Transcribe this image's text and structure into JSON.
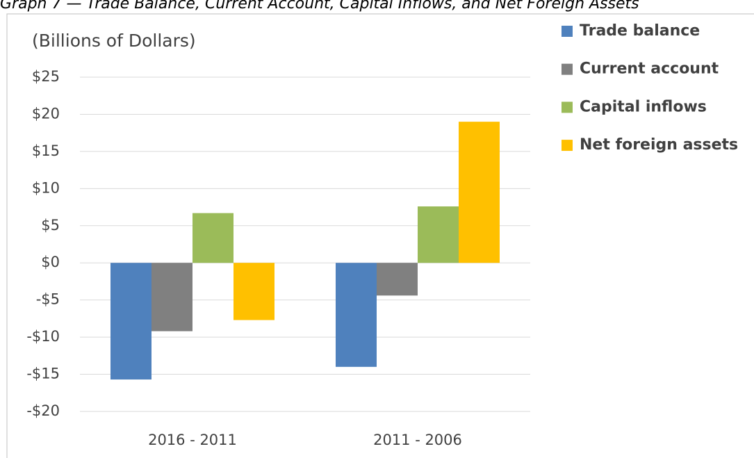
{
  "chart_data": {
    "type": "bar",
    "title": "Graph 7 — Trade Balance, Current Account, Capital Inflows, and Net Foreign Assets",
    "y_label": "(Billions of Dollars)",
    "categories": [
      "2016 - 2011",
      "2011 - 2006"
    ],
    "series": [
      {
        "name": "Trade balance",
        "color": "#4f81bd",
        "values": [
          -15.7,
          -14.0
        ]
      },
      {
        "name": "Current account",
        "color": "#808080",
        "values": [
          -9.2,
          -4.4
        ]
      },
      {
        "name": "Capital inflows",
        "color": "#9bbb59",
        "values": [
          6.7,
          7.6
        ]
      },
      {
        "name": "Net foreign assets",
        "color": "#ffc000",
        "values": [
          -7.7,
          19.0
        ]
      }
    ],
    "ylim": [
      -20,
      25
    ],
    "yticks": [
      {
        "value": -20,
        "label": "-$20"
      },
      {
        "value": -15,
        "label": "-$15"
      },
      {
        "value": -10,
        "label": "-$10"
      },
      {
        "value": -5,
        "label": "-$5"
      },
      {
        "value": 0,
        "label": "$0"
      },
      {
        "value": 5,
        "label": "$5"
      },
      {
        "value": 10,
        "label": "$10"
      },
      {
        "value": 15,
        "label": "$15"
      },
      {
        "value": 20,
        "label": "$20"
      },
      {
        "value": 25,
        "label": "$25"
      }
    ],
    "grid": true,
    "legend": "right"
  }
}
